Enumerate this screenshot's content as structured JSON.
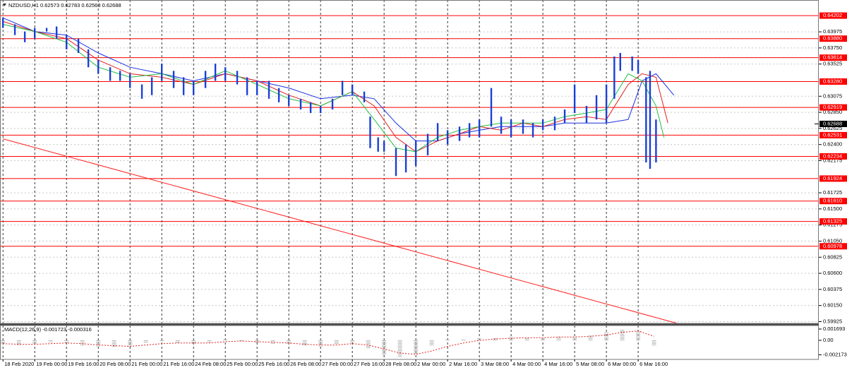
{
  "chart_data": [
    {
      "type": "range",
      "title": "NZDUSD,H1  0.62573 0.62783 0.62568 0.62688",
      "color": "#1a3fd6",
      "x": [
        0,
        6,
        11,
        16,
        22,
        27,
        32,
        38,
        43,
        48,
        54,
        59,
        64,
        70,
        75,
        80,
        86,
        91,
        96,
        102,
        107,
        112,
        118,
        123,
        128,
        134,
        139,
        144,
        150,
        155,
        160,
        166,
        171,
        176,
        182,
        185,
        189,
        192,
        198,
        203,
        208,
        214,
        219,
        224,
        230,
        235,
        240,
        246,
        251,
        256,
        262,
        267,
        272,
        278,
        283,
        288,
        294,
        299,
        304,
        308,
        311,
        317,
        320,
        324,
        326,
        329
      ],
      "high": [
        0.6417,
        0.6408,
        0.6398,
        0.6403,
        0.6403,
        0.6405,
        0.6393,
        0.6388,
        0.6373,
        0.6358,
        0.6348,
        0.6343,
        0.6339,
        0.6324,
        0.6334,
        0.6353,
        0.6343,
        0.6334,
        0.6329,
        0.6343,
        0.6353,
        0.6348,
        0.6343,
        0.6334,
        0.6329,
        0.6329,
        0.6319,
        0.6309,
        0.6304,
        0.6299,
        0.6294,
        0.6304,
        0.6329,
        0.6324,
        0.6314,
        0.6279,
        0.625,
        0.6245,
        0.6235,
        0.624,
        0.6245,
        0.6255,
        0.627,
        0.626,
        0.6265,
        0.627,
        0.6275,
        0.6319,
        0.6279,
        0.6275,
        0.6275,
        0.627,
        0.6275,
        0.6279,
        0.6289,
        0.6324,
        0.6294,
        0.6309,
        0.6324,
        0.6363,
        0.6368,
        0.6363,
        0.6358,
        0.6334,
        0.6343,
        0.6275
      ],
      "low": [
        0.6403,
        0.6393,
        0.6383,
        0.6388,
        0.6398,
        0.6388,
        0.6373,
        0.6368,
        0.6348,
        0.6339,
        0.6329,
        0.6329,
        0.6319,
        0.6304,
        0.6309,
        0.6329,
        0.6319,
        0.6309,
        0.6309,
        0.6319,
        0.6329,
        0.6329,
        0.6324,
        0.6309,
        0.6309,
        0.6304,
        0.6299,
        0.6294,
        0.6289,
        0.6284,
        0.6284,
        0.6289,
        0.6309,
        0.6309,
        0.6299,
        0.6235,
        0.623,
        0.623,
        0.6196,
        0.6201,
        0.621,
        0.6225,
        0.6245,
        0.624,
        0.6245,
        0.625,
        0.625,
        0.6265,
        0.6255,
        0.625,
        0.6255,
        0.625,
        0.626,
        0.626,
        0.627,
        0.6284,
        0.627,
        0.6275,
        0.627,
        0.6304,
        0.6343,
        0.6343,
        0.6339,
        0.6215,
        0.6206,
        0.6215
      ],
      "ma": [
        {
          "color": "#1a2fe0",
          "x": [
            0,
            16,
            32,
            48,
            64,
            80,
            96,
            112,
            128,
            144,
            160,
            176,
            187,
            198,
            208,
            219,
            230,
            240,
            251,
            262,
            272,
            283,
            294,
            304,
            315,
            322,
            329,
            338
          ],
          "values": [
            0.6417,
            0.6398,
            0.6393,
            0.6368,
            0.6348,
            0.6339,
            0.6329,
            0.6339,
            0.6329,
            0.6319,
            0.6304,
            0.6309,
            0.6304,
            0.627,
            0.6245,
            0.6245,
            0.6255,
            0.626,
            0.6265,
            0.6265,
            0.6265,
            0.627,
            0.627,
            0.627,
            0.6275,
            0.6329,
            0.6339,
            0.6309
          ]
        },
        {
          "color": "#e02020",
          "x": [
            0,
            16,
            32,
            48,
            64,
            80,
            96,
            112,
            128,
            144,
            160,
            176,
            187,
            198,
            208,
            219,
            230,
            240,
            251,
            262,
            272,
            283,
            294,
            304,
            315,
            322,
            329,
            335
          ],
          "values": [
            0.6412,
            0.6398,
            0.6388,
            0.6358,
            0.6339,
            0.6334,
            0.6324,
            0.6339,
            0.6329,
            0.6309,
            0.6294,
            0.6314,
            0.6294,
            0.625,
            0.623,
            0.6245,
            0.6255,
            0.6265,
            0.626,
            0.627,
            0.6265,
            0.6275,
            0.6279,
            0.6275,
            0.6324,
            0.6339,
            0.6334,
            0.627
          ]
        },
        {
          "color": "#20c040",
          "x": [
            0,
            16,
            32,
            48,
            64,
            80,
            96,
            112,
            128,
            144,
            160,
            176,
            187,
            198,
            208,
            219,
            230,
            240,
            251,
            262,
            272,
            283,
            294,
            304,
            315,
            322,
            329,
            333
          ],
          "values": [
            0.6408,
            0.6398,
            0.6383,
            0.6348,
            0.6334,
            0.6339,
            0.6324,
            0.6343,
            0.6324,
            0.6304,
            0.6294,
            0.6314,
            0.6275,
            0.6235,
            0.623,
            0.625,
            0.626,
            0.6265,
            0.627,
            0.627,
            0.627,
            0.6279,
            0.6284,
            0.6289,
            0.6339,
            0.6329,
            0.6294,
            0.625
          ]
        }
      ],
      "trendline": {
        "color": "#ff2020",
        "x": [
          0,
          341
        ],
        "values": [
          0.6248,
          0.5989
        ]
      },
      "xlim": [
        -1.5,
        411
      ],
      "ylim": [
        0.599,
        0.6442
      ],
      "xticks": [
        {
          "value": 0,
          "label": "18 Feb 2020"
        },
        {
          "value": 16,
          "label": "19 Feb 00:00"
        },
        {
          "value": 32,
          "label": "19 Feb 16:00"
        },
        {
          "value": 48,
          "label": "20 Feb 08:00"
        },
        {
          "value": 64,
          "label": "21 Feb 00:00"
        },
        {
          "value": 80,
          "label": "21 Feb 16:00"
        },
        {
          "value": 96,
          "label": "24 Feb 08:00"
        },
        {
          "value": 112,
          "label": "25 Feb 00:00"
        },
        {
          "value": 128,
          "label": "25 Feb 16:00"
        },
        {
          "value": 144,
          "label": "26 Feb 08:00"
        },
        {
          "value": 160,
          "label": "27 Feb 00:00"
        },
        {
          "value": 176,
          "label": "27 Feb 16:00"
        },
        {
          "value": 192,
          "label": "28 Feb 08:00"
        },
        {
          "value": 208,
          "label": "2 Mar 00:00"
        },
        {
          "value": 224,
          "label": "2 Mar 16:00"
        },
        {
          "value": 240,
          "label": "3 Mar 08:00"
        },
        {
          "value": 256,
          "label": "4 Mar 00:00"
        },
        {
          "value": 272,
          "label": "4 Mar 16:00"
        },
        {
          "value": 288,
          "label": "5 Mar 08:00"
        },
        {
          "value": 304,
          "label": "6 Mar 00:00"
        },
        {
          "value": 320,
          "label": "6 Mar 16:00"
        }
      ],
      "yticks": [
        0.63975,
        {
          "value": 0.6375,
          "label": "0.63750"
        },
        0.63525,
        0.63075,
        {
          "value": 0.6285,
          "label": "0.62850"
        },
        0.62625,
        {
          "value": 0.624,
          "label": "0.62400"
        },
        0.62175,
        0.61725,
        {
          "value": 0.615,
          "label": "0.61500"
        },
        0.61275,
        {
          "value": 0.6105,
          "label": "0.61050"
        },
        0.60825,
        {
          "value": 0.606,
          "label": "0.60600"
        },
        0.60375,
        {
          "value": 0.6015,
          "label": "0.60150"
        },
        0.59925
      ],
      "levels": [
        0.64202,
        {
          "value": 0.6388,
          "label": "0.63880"
        },
        0.63614,
        {
          "value": 0.6328,
          "label": "0.63280"
        },
        0.62919,
        0.62531,
        0.62234,
        0.61924,
        {
          "value": 0.6161,
          "label": "0.61610"
        },
        0.61325,
        0.60978
      ],
      "level_color": "#ff0000",
      "last_price": 0.62688,
      "grid": true
    },
    {
      "type": "macd",
      "title": "MACD(12,26,9) -0.001723 -0.000316",
      "x": [
        0,
        8,
        16,
        24,
        32,
        40,
        48,
        56,
        64,
        72,
        80,
        88,
        96,
        104,
        112,
        120,
        128,
        136,
        144,
        152,
        160,
        168,
        176,
        184,
        192,
        200,
        208,
        216,
        224,
        232,
        240,
        248,
        256,
        264,
        272,
        280,
        288,
        296,
        304,
        312,
        320,
        328
      ],
      "series": [
        {
          "color": "#b8b8b8",
          "values": [
            -0.0006,
            -0.0007,
            -0.0005,
            -0.0003,
            -0.0003,
            -0.0008,
            -0.0009,
            -0.001,
            -0.0009,
            -0.0004,
            -0.0002,
            -0.0004,
            -0.0005,
            -0.0003,
            0.0002,
            -0.0002,
            -0.0004,
            -0.0005,
            -0.0006,
            -0.0008,
            -0.0009,
            -0.0006,
            -0.0003,
            -0.0012,
            -0.0022,
            -0.0025,
            -0.002,
            -0.0008,
            0.0001,
            0.0001,
            0.0003,
            0.0004,
            0.0005,
            0.0004,
            0.0004,
            0.0006,
            0.0005,
            0.0007,
            0.0012,
            0.0016,
            0.0015,
            -0.0008
          ]
        },
        {
          "color": "#e02020",
          "values": [
            -0.0005,
            -0.0006,
            -0.0006,
            -0.0005,
            -0.0004,
            -0.0005,
            -0.0007,
            -0.0008,
            -0.0009,
            -0.0007,
            -0.0005,
            -0.0004,
            -0.0004,
            -0.0004,
            -0.0002,
            -0.0001,
            -0.0002,
            -0.0003,
            -0.0004,
            -0.0006,
            -0.0007,
            -0.0007,
            -0.0005,
            -0.0007,
            -0.0013,
            -0.0019,
            -0.0021,
            -0.0016,
            -0.0009,
            -0.0004,
            0,
            0.0002,
            0.0003,
            0.0004,
            0.0004,
            0.0005,
            0.0005,
            0.0006,
            0.0008,
            0.0012,
            0.0014,
            0.0006
          ]
        }
      ],
      "xlim": [
        -1.5,
        411
      ],
      "ylim": [
        -0.00286,
        0.00222
      ],
      "yticks": [
        0.001693,
        {
          "value": 0,
          "label": "0.00"
        },
        -0.002173
      ]
    }
  ]
}
